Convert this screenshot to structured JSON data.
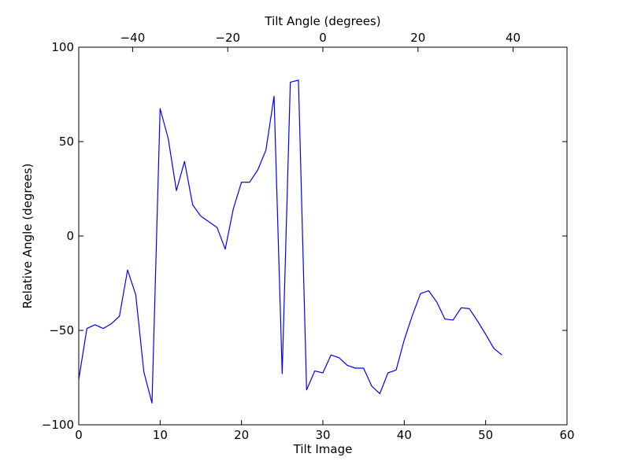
{
  "chart_data": {
    "type": "line",
    "title": "",
    "xlabel": "Tilt Image",
    "ylabel": "Relative Angle (degrees)",
    "top_xlabel": "Tilt Angle (degrees)",
    "xlim": [
      0,
      60
    ],
    "ylim": [
      -100,
      100
    ],
    "top_xlim": [
      -51.33,
      51.33
    ],
    "x_ticks": [
      0,
      10,
      20,
      30,
      40,
      50,
      60
    ],
    "y_ticks": [
      -100,
      -50,
      0,
      50,
      100
    ],
    "top_x_ticks": [
      -40,
      -20,
      0,
      20,
      40
    ],
    "x_tick_labels": [
      "0",
      "10",
      "20",
      "30",
      "40",
      "50",
      "60"
    ],
    "y_tick_labels": [
      "−100",
      "−50",
      "0",
      "50",
      "100"
    ],
    "top_x_tick_labels": [
      "−40",
      "−20",
      "0",
      "20",
      "40"
    ],
    "grid": false,
    "legend": "none",
    "series": [
      {
        "color": "#0000ff",
        "x": [
          0,
          1,
          2,
          3,
          4,
          5,
          6,
          7,
          8,
          9,
          10,
          11,
          12,
          13,
          14,
          15,
          16,
          17,
          18,
          19,
          20,
          21,
          22,
          23,
          24,
          25,
          26,
          27,
          28,
          29,
          30,
          31,
          32,
          33,
          34,
          35,
          36,
          37,
          38,
          39,
          40,
          41,
          42,
          43,
          44,
          45,
          46,
          47,
          48,
          49,
          50,
          51,
          52
        ],
        "y": [
          -76,
          -49,
          -47,
          -49,
          -46.5,
          -42.5,
          -18,
          -31,
          -72,
          -88.5,
          67.5,
          51.5,
          24,
          39.5,
          16.5,
          10.5,
          7.5,
          4.5,
          -7,
          14.5,
          28.5,
          28.5,
          35,
          45.5,
          74,
          -73,
          81.5,
          82.5,
          -81.5,
          -71.5,
          -72.5,
          -63,
          -64.5,
          -68.5,
          -70,
          -70,
          -79.5,
          -83.5,
          -72.5,
          -71,
          -55,
          -42,
          -30.5,
          -29,
          -35,
          -44,
          -44.5,
          -38,
          -38.5,
          -45,
          -52,
          -59.5,
          -63
        ]
      }
    ]
  }
}
